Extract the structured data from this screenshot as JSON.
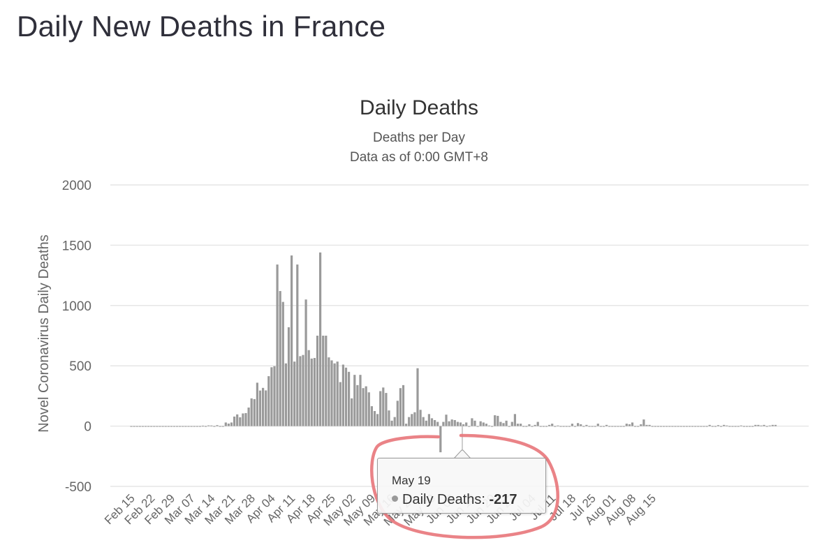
{
  "page": {
    "title": "Daily New Deaths in France"
  },
  "tooltip": {
    "date": "May 19",
    "series_label": "Daily Deaths:",
    "value": "-217"
  },
  "colors": {
    "bar": "#9a9a9a",
    "annotation_circle": "#e8767a",
    "grid": "#e6e6e6"
  },
  "chart_data": {
    "type": "bar",
    "title": "Daily Deaths",
    "subtitle": "Deaths per Day",
    "subtitle2": "Data as of 0:00 GMT+8",
    "ylabel": "Novel Coronavirus Daily Deaths",
    "xlabel": "",
    "ylim": [
      -500,
      2000
    ],
    "yticks": [
      2000,
      1500,
      1000,
      500,
      0,
      -500
    ],
    "x_tick_labels": [
      "Feb 15",
      "Feb 22",
      "Feb 29",
      "Mar 07",
      "Mar 14",
      "Mar 21",
      "Mar 28",
      "Apr 04",
      "Apr 11",
      "Apr 18",
      "Apr 25",
      "May 02",
      "May 09",
      "May 16",
      "May 23",
      "May 30",
      "Jun 06",
      "Jun 13",
      "Jun 20",
      "Jun 27",
      "Jul 04",
      "Jul 11",
      "Jul 18",
      "Jul 25",
      "Aug 01",
      "Aug 08",
      "Aug 15"
    ],
    "start_date": "Feb 15",
    "values": [
      0,
      0,
      0,
      0,
      0,
      0,
      0,
      0,
      0,
      0,
      0,
      0,
      0,
      0,
      0,
      0,
      0,
      0,
      0,
      0,
      0,
      0,
      0,
      0,
      0,
      3,
      0,
      6,
      5,
      0,
      8,
      0,
      0,
      30,
      21,
      30,
      79,
      97,
      73,
      105,
      108,
      154,
      230,
      224,
      360,
      295,
      317,
      296,
      414,
      488,
      497,
      1340,
      1120,
      1030,
      520,
      820,
      1415,
      535,
      1340,
      580,
      590,
      1050,
      630,
      560,
      565,
      750,
      1440,
      750,
      750,
      570,
      545,
      520,
      535,
      365,
      510,
      485,
      450,
      230,
      425,
      340,
      425,
      315,
      330,
      280,
      165,
      125,
      100,
      290,
      320,
      275,
      130,
      45,
      75,
      210,
      315,
      340,
      20,
      75,
      100,
      115,
      480,
      135,
      75,
      45,
      100,
      65,
      50,
      35,
      -217,
      35,
      95,
      40,
      55,
      50,
      35,
      30,
      15,
      30,
      0,
      65,
      45,
      0,
      40,
      30,
      20,
      5,
      0,
      90,
      85,
      35,
      25,
      45,
      0,
      35,
      100,
      20,
      20,
      0,
      0,
      15,
      0,
      10,
      35,
      0,
      0,
      0,
      10,
      20,
      0,
      5,
      0,
      0,
      0,
      0,
      20,
      0,
      25,
      15,
      0,
      10,
      0,
      0,
      0,
      20,
      0,
      0,
      10,
      0,
      0,
      0,
      0,
      0,
      0,
      20,
      15,
      30,
      0,
      0,
      15,
      55,
      10,
      10,
      0,
      0,
      0,
      0,
      0,
      0,
      0,
      0,
      0,
      0,
      0,
      0,
      0,
      0,
      0,
      0,
      0,
      0,
      0,
      0,
      10,
      0,
      0,
      8,
      0,
      10,
      5,
      0,
      0,
      0,
      0,
      5,
      0,
      0,
      0,
      0,
      10,
      10,
      5,
      10,
      0,
      5,
      10,
      10
    ]
  }
}
